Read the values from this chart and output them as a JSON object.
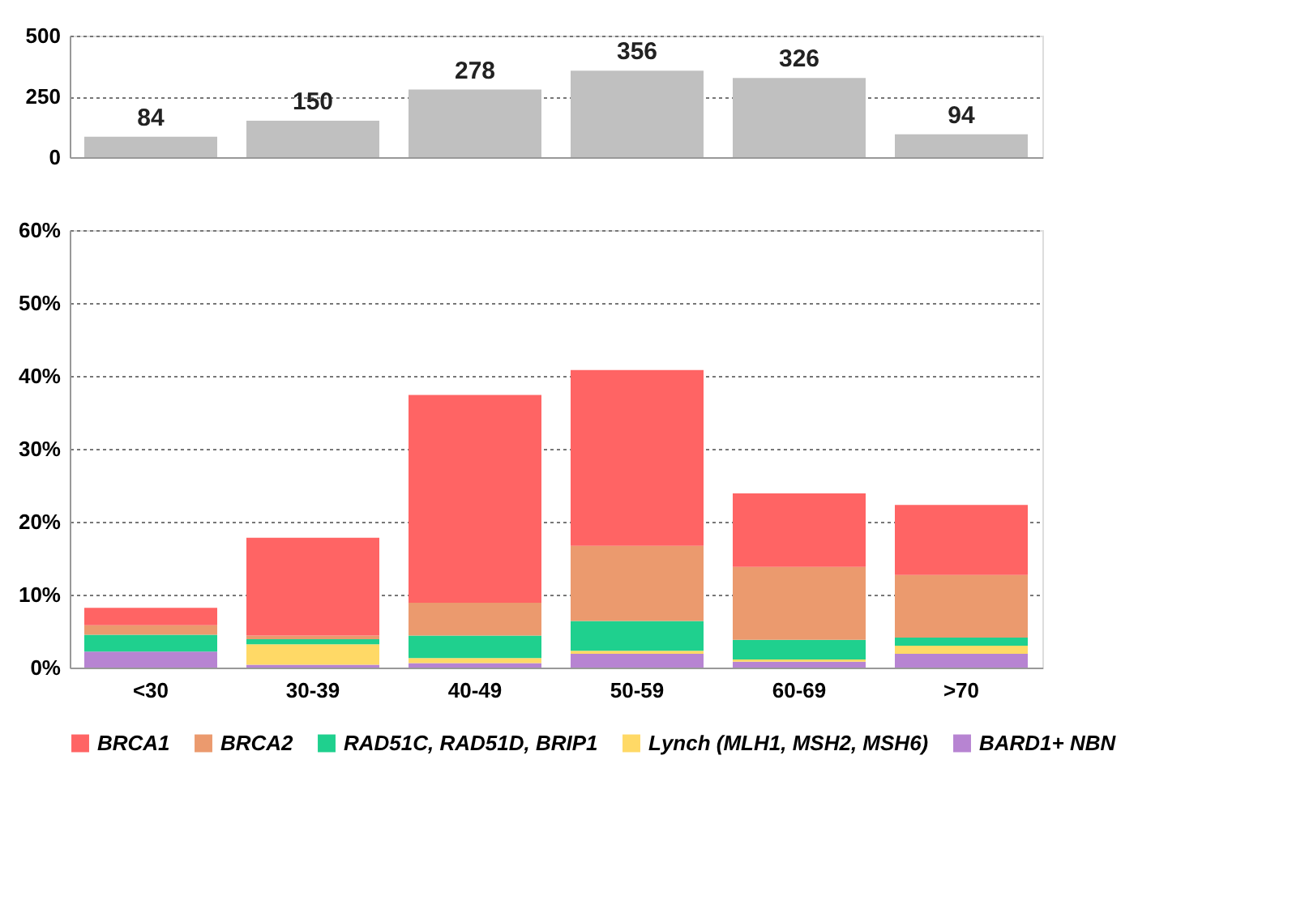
{
  "chart_data": [
    {
      "type": "bar",
      "categories": [
        null,
        null,
        null,
        null,
        null,
        null
      ],
      "values": [
        84,
        150,
        278,
        356,
        326,
        94
      ],
      "color": "#c0c0c0",
      "ylim": [
        0,
        500
      ],
      "yticks": [
        0,
        250,
        500
      ],
      "grid": "y",
      "data_labels": true,
      "tick_labels": "y"
    },
    {
      "type": "bar",
      "stacked": true,
      "categories": [
        "<30",
        "30-39",
        "40-49",
        "50-59",
        "60-69",
        ">70"
      ],
      "series": [
        {
          "name": "BARD1+ NBN",
          "color": "#b784d2",
          "values": [
            2.2,
            0.4,
            0.6,
            1.9,
            0.8,
            1.9
          ]
        },
        {
          "name": "Lynch (MLH1, MSH2, MSH6)",
          "color": "#ffd966",
          "values": [
            0,
            2.8,
            0.7,
            0.4,
            0.3,
            1.1
          ]
        },
        {
          "name": "RAD51C, RAD51D, BRIP1",
          "color": "#1fd08e",
          "values": [
            2.3,
            0.7,
            3.1,
            4.1,
            2.7,
            1.1
          ]
        },
        {
          "name": "BRCA2",
          "color": "#eb9a6e",
          "values": [
            1.3,
            0.5,
            4.5,
            10.3,
            10.0,
            8.6
          ]
        },
        {
          "name": "BRCA1",
          "color": "#ff6464",
          "values": [
            2.4,
            13.4,
            28.5,
            24.1,
            10.1,
            9.6
          ]
        }
      ],
      "ylim": [
        0,
        60
      ],
      "yticks": [
        {
          "value": 0,
          "label": "0%"
        },
        {
          "value": 10,
          "label": "10%"
        },
        {
          "value": 20,
          "label": "20%"
        },
        {
          "value": 30,
          "label": "30%"
        },
        {
          "value": 40,
          "label": "40%"
        },
        {
          "value": 50,
          "label": "50%"
        },
        {
          "value": 60,
          "label": "60%"
        }
      ],
      "grid": "y",
      "legend": "bottom"
    }
  ]
}
